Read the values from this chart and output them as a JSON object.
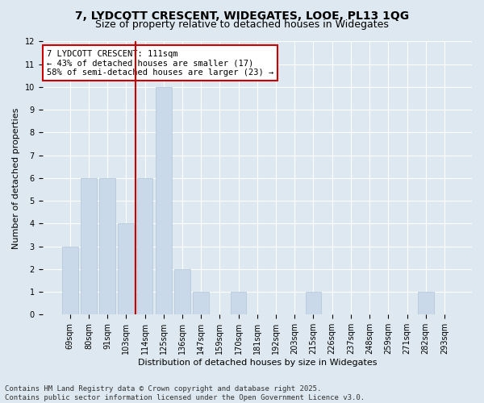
{
  "title_line1": "7, LYDCOTT CRESCENT, WIDEGATES, LOOE, PL13 1QG",
  "title_line2": "Size of property relative to detached houses in Widegates",
  "xlabel": "Distribution of detached houses by size in Widegates",
  "ylabel": "Number of detached properties",
  "categories": [
    "69sqm",
    "80sqm",
    "91sqm",
    "103sqm",
    "114sqm",
    "125sqm",
    "136sqm",
    "147sqm",
    "159sqm",
    "170sqm",
    "181sqm",
    "192sqm",
    "203sqm",
    "215sqm",
    "226sqm",
    "237sqm",
    "248sqm",
    "259sqm",
    "271sqm",
    "282sqm",
    "293sqm"
  ],
  "values": [
    3,
    6,
    6,
    4,
    6,
    10,
    2,
    1,
    0,
    1,
    0,
    0,
    0,
    1,
    0,
    0,
    0,
    0,
    0,
    1,
    0
  ],
  "bar_color": "#c9d9ea",
  "bar_edge_color": "#b0c4d8",
  "reference_line_index": 4,
  "reference_line_color": "#cc0000",
  "annotation_line1": "7 LYDCOTT CRESCENT: 111sqm",
  "annotation_line2": "← 43% of detached houses are smaller (17)",
  "annotation_line3": "58% of semi-detached houses are larger (23) →",
  "annotation_box_color": "white",
  "annotation_box_edge_color": "#cc0000",
  "ylim": [
    0,
    12
  ],
  "yticks": [
    0,
    1,
    2,
    3,
    4,
    5,
    6,
    7,
    8,
    9,
    10,
    11,
    12
  ],
  "background_color": "#dde8f0",
  "plot_background_color": "#dde8f0",
  "footer_text": "Contains HM Land Registry data © Crown copyright and database right 2025.\nContains public sector information licensed under the Open Government Licence v3.0.",
  "title_fontsize": 10,
  "subtitle_fontsize": 9,
  "axis_label_fontsize": 8,
  "tick_fontsize": 7,
  "annotation_fontsize": 7.5,
  "footer_fontsize": 6.5
}
